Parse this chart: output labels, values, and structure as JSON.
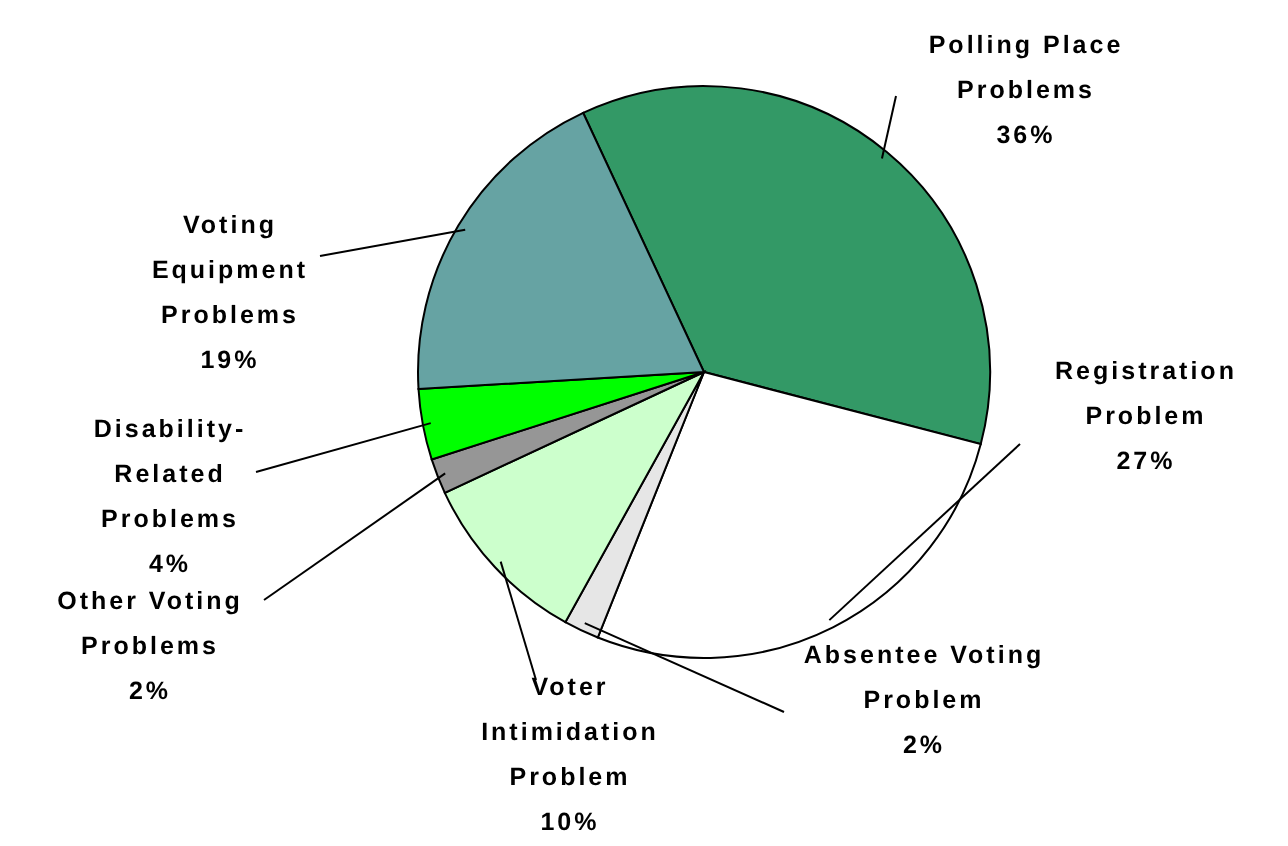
{
  "chart_data": {
    "type": "pie",
    "categories": [
      "Polling Place\nProblems",
      "Registration\nProblem",
      "Absentee Voting\nProblem",
      "Voter\nIntimidation\nProblem",
      "Other Voting\nProblems",
      "Disability-\nRelated\nProblems",
      "Voting\nEquipment\nProblems"
    ],
    "values": [
      36,
      27,
      2,
      10,
      2,
      4,
      19
    ],
    "colors": [
      "#339966",
      "#ffffff",
      "#e6e6e6",
      "#ccffcc",
      "#969696",
      "#00ff00",
      "#66a3a3"
    ],
    "data_labels": true,
    "value_labels": [
      "36%",
      "27%",
      "2%",
      "10%",
      "2%",
      "4%",
      "19%"
    ],
    "legend": false
  }
}
